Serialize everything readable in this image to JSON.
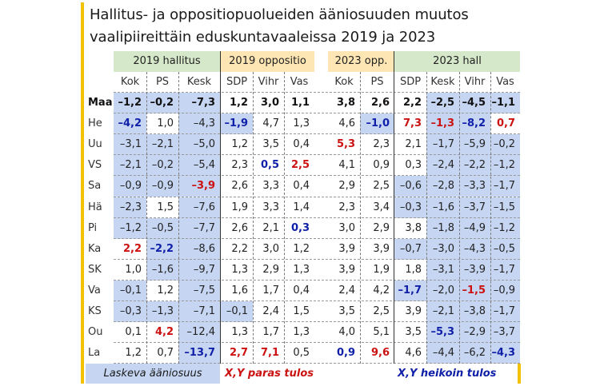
{
  "title_line1": "Hallitus- ja oppositiopuolueiden ääniosuuden muutos",
  "title_line2": "vaalipiireittäin eduskuntavaaleissa 2019 ja 2023",
  "groups": [
    {
      "label": "2019 hallitus",
      "color": "#d5e8c9"
    },
    {
      "label": "2019 oppositio",
      "color": "#fde6b3"
    },
    {
      "label": "2023 opp.",
      "color": "#fde6b3"
    },
    {
      "label": "2023 hall",
      "color": "#d5e8c9"
    }
  ],
  "chart_data": {
    "type": "table",
    "columns_left": [
      "Kok",
      "PS",
      "Kesk",
      "SDP",
      "Vihr",
      "Vas"
    ],
    "columns_right": [
      "Kok",
      "PS",
      "SDP",
      "Kesk",
      "Vihr",
      "Vas"
    ],
    "rows": [
      {
        "label": "Maa",
        "left": [
          "–1,2",
          "–0,2",
          "–7,3",
          "1,2",
          "3,0",
          "1,1"
        ],
        "right": [
          "3,8",
          "2,6",
          "2,2",
          "–2,5",
          "–4,5",
          "–1,1"
        ]
      },
      {
        "label": "He",
        "left": [
          "–4,2",
          "1,0",
          "–4,3",
          "–1,9",
          "4,7",
          "1,3"
        ],
        "right": [
          "4,6",
          "–1,0",
          "7,3",
          "–1,3",
          "–8,2",
          "0,7"
        ]
      },
      {
        "label": "Uu",
        "left": [
          "–3,1",
          "–2,1",
          "–5,0",
          "1,2",
          "3,5",
          "0,4"
        ],
        "right": [
          "5,3",
          "2,3",
          "2,1",
          "–1,7",
          "–5,9",
          "–0,2"
        ]
      },
      {
        "label": "VS",
        "left": [
          "–2,1",
          "–0,2",
          "–5,4",
          "2,3",
          "0,5",
          "2,5"
        ],
        "right": [
          "4,1",
          "0,9",
          "0,3",
          "–2,4",
          "–2,2",
          "–1,2"
        ]
      },
      {
        "label": "Sa",
        "left": [
          "–0,9",
          "–0,9",
          "–3,9",
          "2,6",
          "3,3",
          "0,4"
        ],
        "right": [
          "2,9",
          "2,5",
          "–0,6",
          "–2,8",
          "–3,3",
          "–1,7"
        ]
      },
      {
        "label": "Hä",
        "left": [
          "–2,3",
          "1,5",
          "–7,6",
          "1,9",
          "3,3",
          "1,4"
        ],
        "right": [
          "2,3",
          "3,4",
          "–0,3",
          "–1,6",
          "–3,7",
          "–1,5"
        ]
      },
      {
        "label": "Pi",
        "left": [
          "–1,2",
          "–0,5",
          "–7,7",
          "2,6",
          "2,1",
          "0,3"
        ],
        "right": [
          "3,0",
          "2,9",
          "3,8",
          "–1,8",
          "–4,9",
          "–1,2"
        ]
      },
      {
        "label": "Ka",
        "left": [
          "2,2",
          "–2,2",
          "–8,6",
          "2,2",
          "3,0",
          "1,2"
        ],
        "right": [
          "3,9",
          "3,9",
          "–0,7",
          "–3,0",
          "–4,3",
          "–0,5"
        ]
      },
      {
        "label": "SK",
        "left": [
          "1,0",
          "–1,6",
          "–9,7",
          "1,3",
          "2,9",
          "1,3"
        ],
        "right": [
          "3,9",
          "1,9",
          "1,8",
          "–3,1",
          "–3,9",
          "–1,7"
        ]
      },
      {
        "label": "Va",
        "left": [
          "–0,1",
          "1,2",
          "–7,5",
          "1,6",
          "1,7",
          "0,4"
        ],
        "right": [
          "2,4",
          "4,2",
          "–1,7",
          "–2,0",
          "–1,5",
          "–0,9"
        ]
      },
      {
        "label": "KS",
        "left": [
          "–0,3",
          "–1,3",
          "–7,1",
          "–0,1",
          "2,4",
          "1,5"
        ],
        "right": [
          "3,5",
          "2,5",
          "3,9",
          "–2,1",
          "–3,8",
          "–1,7"
        ]
      },
      {
        "label": "Ou",
        "left": [
          "0,1",
          "4,2",
          "–12,4",
          "1,3",
          "1,7",
          "1,3"
        ],
        "right": [
          "4,0",
          "5,1",
          "3,5",
          "–5,3",
          "–2,9",
          "–3,7"
        ]
      },
      {
        "label": "La",
        "left": [
          "1,2",
          "0,7",
          "–13,7",
          "2,7",
          "7,1",
          "0,5"
        ],
        "right": [
          "0,9",
          "9,6",
          "4,6",
          "–4,4",
          "–6,2",
          "–4,3"
        ]
      }
    ],
    "best_color": "#cc1111",
    "worst_color": "#1020a8",
    "declining_bg": "#c6d6f2"
  },
  "legend": {
    "declining": "Laskeva ääniosuus",
    "best": "X,Y paras tulos",
    "worst": "X,Y heikoin tulos"
  }
}
